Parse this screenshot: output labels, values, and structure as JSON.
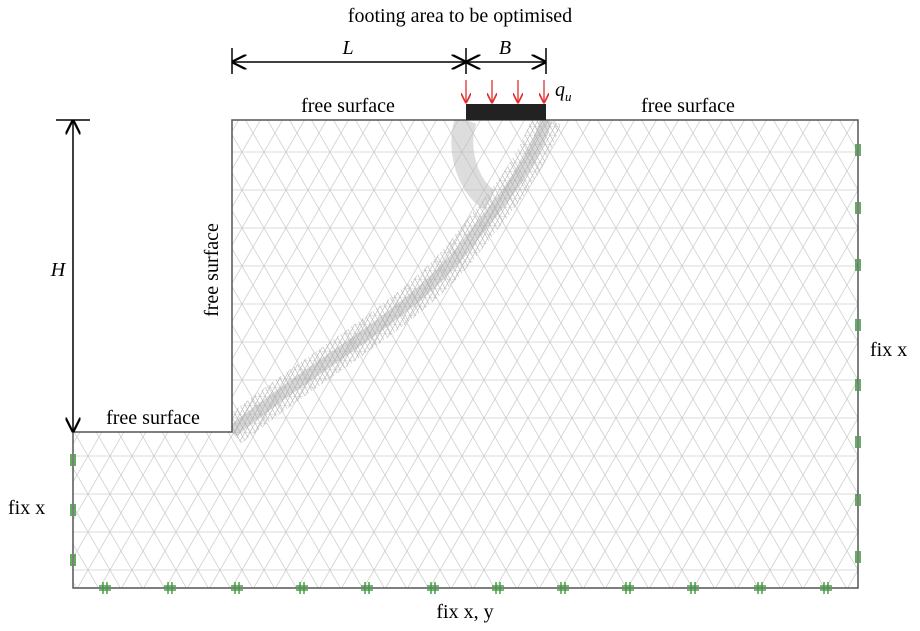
{
  "title": "footing area to be optimised",
  "dimensions": {
    "L": "L",
    "B": "B",
    "H": "H"
  },
  "load": {
    "symbol": "q",
    "subscript": "u"
  },
  "surfaces": [
    "free surface",
    "free surface",
    "free surface",
    "free surface"
  ],
  "boundaries": {
    "right": "fix x",
    "left": "fix x",
    "bottom": "fix x, y"
  }
}
